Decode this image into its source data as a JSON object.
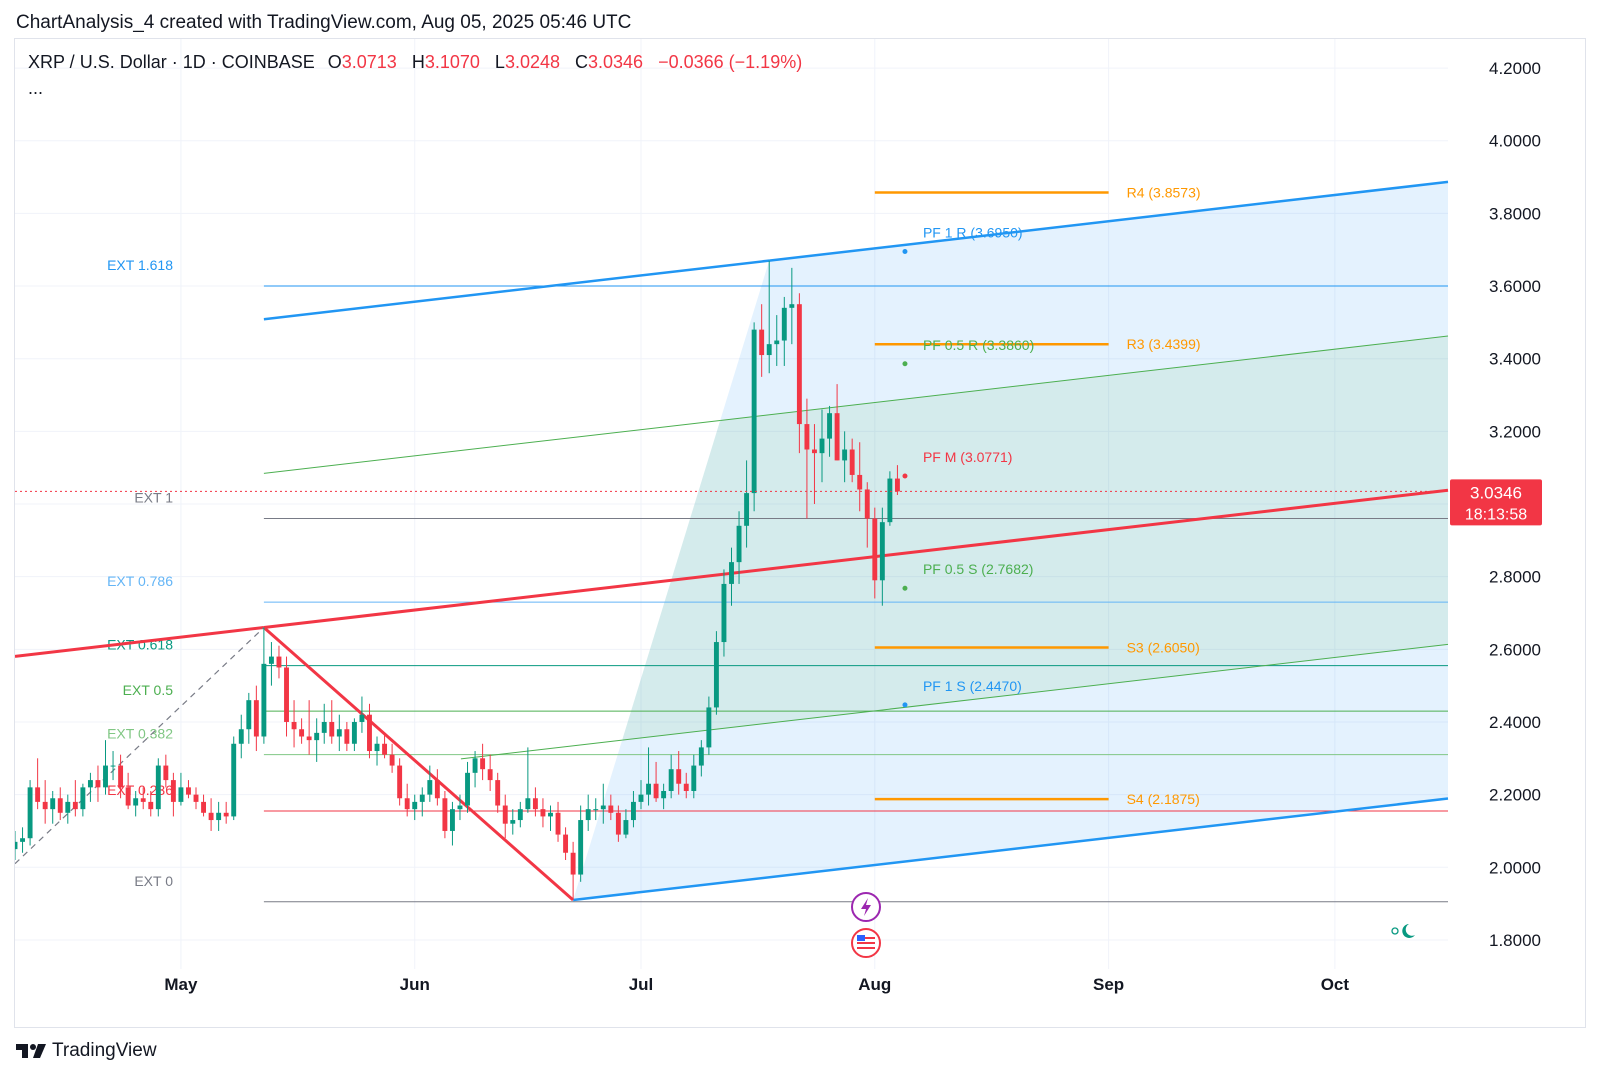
{
  "header": {
    "caption": "ChartAnalysis_4 created with TradingView.com, Aug 05, 2025 05:46 UTC"
  },
  "legend": {
    "symbol": "XRP / U.S. Dollar · 1D · COINBASE",
    "open_label": "O",
    "open": "3.0713",
    "high_label": "H",
    "high": "3.1070",
    "low_label": "L",
    "low": "3.0248",
    "close_label": "C",
    "close": "3.0346",
    "change": "−0.0366 (−1.19%)",
    "more": "..."
  },
  "price_badge": {
    "price": "3.0346",
    "countdown": "18:13:58",
    "color": "#f23645"
  },
  "footer": {
    "brand": "TradingView"
  },
  "colors": {
    "up": "#089981",
    "down": "#f23645",
    "pitchfork_outer": "#2196f3",
    "pitchfork_inner": "#4caf50",
    "median": "#f23645",
    "pivot": "#ff9800"
  },
  "chart_data": {
    "type": "candlestick",
    "ylim": [
      1.72,
      4.28
    ],
    "y_ticks": [
      "4.2000",
      "4.0000",
      "3.8000",
      "3.6000",
      "3.4000",
      "3.2000",
      "3.0000",
      "2.8000",
      "2.6000",
      "2.4000",
      "2.2000",
      "2.0000",
      "1.8000"
    ],
    "x_range": [
      "2025-04-09",
      "2025-10-16"
    ],
    "x_ticks": [
      {
        "date": "2025-05-01",
        "label": "May"
      },
      {
        "date": "2025-06-01",
        "label": "Jun"
      },
      {
        "date": "2025-07-01",
        "label": "Jul"
      },
      {
        "date": "2025-08-01",
        "label": "Aug"
      },
      {
        "date": "2025-09-01",
        "label": "Sep"
      },
      {
        "date": "2025-10-01",
        "label": "Oct"
      }
    ],
    "candles": [
      {
        "d": "2025-04-09",
        "o": 2.05,
        "h": 2.1,
        "l": 2.02,
        "c": 2.07
      },
      {
        "d": "2025-04-10",
        "o": 2.07,
        "h": 2.11,
        "l": 2.04,
        "c": 2.08
      },
      {
        "d": "2025-04-11",
        "o": 2.08,
        "h": 2.24,
        "l": 2.06,
        "c": 2.22
      },
      {
        "d": "2025-04-12",
        "o": 2.22,
        "h": 2.3,
        "l": 2.16,
        "c": 2.18
      },
      {
        "d": "2025-04-13",
        "o": 2.18,
        "h": 2.24,
        "l": 2.12,
        "c": 2.16
      },
      {
        "d": "2025-04-14",
        "o": 2.16,
        "h": 2.21,
        "l": 2.12,
        "c": 2.19
      },
      {
        "d": "2025-04-15",
        "o": 2.19,
        "h": 2.22,
        "l": 2.13,
        "c": 2.15
      },
      {
        "d": "2025-04-16",
        "o": 2.15,
        "h": 2.2,
        "l": 2.12,
        "c": 2.18
      },
      {
        "d": "2025-04-17",
        "o": 2.18,
        "h": 2.24,
        "l": 2.14,
        "c": 2.16
      },
      {
        "d": "2025-04-18",
        "o": 2.16,
        "h": 2.23,
        "l": 2.14,
        "c": 2.22
      },
      {
        "d": "2025-04-19",
        "o": 2.22,
        "h": 2.26,
        "l": 2.18,
        "c": 2.24
      },
      {
        "d": "2025-04-20",
        "o": 2.24,
        "h": 2.28,
        "l": 2.18,
        "c": 2.22
      },
      {
        "d": "2025-04-21",
        "o": 2.22,
        "h": 2.35,
        "l": 2.2,
        "c": 2.28
      },
      {
        "d": "2025-04-22",
        "o": 2.28,
        "h": 2.32,
        "l": 2.24,
        "c": 2.28
      },
      {
        "d": "2025-04-23",
        "o": 2.28,
        "h": 2.31,
        "l": 2.19,
        "c": 2.22
      },
      {
        "d": "2025-04-24",
        "o": 2.22,
        "h": 2.26,
        "l": 2.16,
        "c": 2.17
      },
      {
        "d": "2025-04-25",
        "o": 2.17,
        "h": 2.21,
        "l": 2.14,
        "c": 2.19
      },
      {
        "d": "2025-04-26",
        "o": 2.19,
        "h": 2.22,
        "l": 2.16,
        "c": 2.18
      },
      {
        "d": "2025-04-27",
        "o": 2.18,
        "h": 2.21,
        "l": 2.14,
        "c": 2.16
      },
      {
        "d": "2025-04-28",
        "o": 2.16,
        "h": 2.3,
        "l": 2.14,
        "c": 2.28
      },
      {
        "d": "2025-04-29",
        "o": 2.28,
        "h": 2.31,
        "l": 2.22,
        "c": 2.24
      },
      {
        "d": "2025-04-30",
        "o": 2.24,
        "h": 2.26,
        "l": 2.14,
        "c": 2.18
      },
      {
        "d": "2025-05-01",
        "o": 2.18,
        "h": 2.26,
        "l": 2.17,
        "c": 2.22
      },
      {
        "d": "2025-05-02",
        "o": 2.22,
        "h": 2.24,
        "l": 2.19,
        "c": 2.2
      },
      {
        "d": "2025-05-03",
        "o": 2.2,
        "h": 2.22,
        "l": 2.16,
        "c": 2.18
      },
      {
        "d": "2025-05-04",
        "o": 2.18,
        "h": 2.2,
        "l": 2.14,
        "c": 2.15
      },
      {
        "d": "2025-05-05",
        "o": 2.15,
        "h": 2.19,
        "l": 2.1,
        "c": 2.13
      },
      {
        "d": "2025-05-06",
        "o": 2.13,
        "h": 2.18,
        "l": 2.1,
        "c": 2.15
      },
      {
        "d": "2025-05-07",
        "o": 2.15,
        "h": 2.18,
        "l": 2.12,
        "c": 2.14
      },
      {
        "d": "2025-05-08",
        "o": 2.14,
        "h": 2.36,
        "l": 2.13,
        "c": 2.34
      },
      {
        "d": "2025-05-09",
        "o": 2.34,
        "h": 2.42,
        "l": 2.3,
        "c": 2.38
      },
      {
        "d": "2025-05-10",
        "o": 2.38,
        "h": 2.48,
        "l": 2.34,
        "c": 2.46
      },
      {
        "d": "2025-05-11",
        "o": 2.46,
        "h": 2.5,
        "l": 2.32,
        "c": 2.36
      },
      {
        "d": "2025-05-12",
        "o": 2.36,
        "h": 2.66,
        "l": 2.34,
        "c": 2.56
      },
      {
        "d": "2025-05-13",
        "o": 2.56,
        "h": 2.62,
        "l": 2.5,
        "c": 2.58
      },
      {
        "d": "2025-05-14",
        "o": 2.58,
        "h": 2.61,
        "l": 2.52,
        "c": 2.55
      },
      {
        "d": "2025-05-15",
        "o": 2.55,
        "h": 2.58,
        "l": 2.36,
        "c": 2.4
      },
      {
        "d": "2025-05-16",
        "o": 2.4,
        "h": 2.46,
        "l": 2.33,
        "c": 2.38
      },
      {
        "d": "2025-05-17",
        "o": 2.38,
        "h": 2.41,
        "l": 2.34,
        "c": 2.36
      },
      {
        "d": "2025-05-18",
        "o": 2.36,
        "h": 2.46,
        "l": 2.31,
        "c": 2.35
      },
      {
        "d": "2025-05-19",
        "o": 2.35,
        "h": 2.41,
        "l": 2.29,
        "c": 2.37
      },
      {
        "d": "2025-05-20",
        "o": 2.37,
        "h": 2.45,
        "l": 2.34,
        "c": 2.4
      },
      {
        "d": "2025-05-21",
        "o": 2.4,
        "h": 2.46,
        "l": 2.34,
        "c": 2.36
      },
      {
        "d": "2025-05-22",
        "o": 2.36,
        "h": 2.42,
        "l": 2.32,
        "c": 2.38
      },
      {
        "d": "2025-05-23",
        "o": 2.38,
        "h": 2.4,
        "l": 2.32,
        "c": 2.34
      },
      {
        "d": "2025-05-24",
        "o": 2.34,
        "h": 2.41,
        "l": 2.32,
        "c": 2.4
      },
      {
        "d": "2025-05-25",
        "o": 2.4,
        "h": 2.47,
        "l": 2.37,
        "c": 2.42
      },
      {
        "d": "2025-05-26",
        "o": 2.42,
        "h": 2.45,
        "l": 2.3,
        "c": 2.32
      },
      {
        "d": "2025-05-27",
        "o": 2.32,
        "h": 2.36,
        "l": 2.28,
        "c": 2.34
      },
      {
        "d": "2025-05-28",
        "o": 2.34,
        "h": 2.37,
        "l": 2.3,
        "c": 2.31
      },
      {
        "d": "2025-05-29",
        "o": 2.31,
        "h": 2.34,
        "l": 2.26,
        "c": 2.28
      },
      {
        "d": "2025-05-30",
        "o": 2.28,
        "h": 2.3,
        "l": 2.17,
        "c": 2.19
      },
      {
        "d": "2025-05-31",
        "o": 2.19,
        "h": 2.23,
        "l": 2.14,
        "c": 2.16
      },
      {
        "d": "2025-06-01",
        "o": 2.16,
        "h": 2.2,
        "l": 2.13,
        "c": 2.18
      },
      {
        "d": "2025-06-02",
        "o": 2.18,
        "h": 2.22,
        "l": 2.14,
        "c": 2.2
      },
      {
        "d": "2025-06-03",
        "o": 2.2,
        "h": 2.28,
        "l": 2.18,
        "c": 2.24
      },
      {
        "d": "2025-06-04",
        "o": 2.24,
        "h": 2.27,
        "l": 2.17,
        "c": 2.19
      },
      {
        "d": "2025-06-05",
        "o": 2.19,
        "h": 2.21,
        "l": 2.08,
        "c": 2.1
      },
      {
        "d": "2025-06-06",
        "o": 2.1,
        "h": 2.18,
        "l": 2.06,
        "c": 2.16
      },
      {
        "d": "2025-06-07",
        "o": 2.16,
        "h": 2.2,
        "l": 2.13,
        "c": 2.17
      },
      {
        "d": "2025-06-08",
        "o": 2.17,
        "h": 2.29,
        "l": 2.15,
        "c": 2.26
      },
      {
        "d": "2025-06-09",
        "o": 2.26,
        "h": 2.32,
        "l": 2.22,
        "c": 2.3
      },
      {
        "d": "2025-06-10",
        "o": 2.3,
        "h": 2.34,
        "l": 2.24,
        "c": 2.27
      },
      {
        "d": "2025-06-11",
        "o": 2.27,
        "h": 2.31,
        "l": 2.21,
        "c": 2.24
      },
      {
        "d": "2025-06-12",
        "o": 2.24,
        "h": 2.26,
        "l": 2.15,
        "c": 2.17
      },
      {
        "d": "2025-06-13",
        "o": 2.17,
        "h": 2.2,
        "l": 2.08,
        "c": 2.12
      },
      {
        "d": "2025-06-14",
        "o": 2.12,
        "h": 2.16,
        "l": 2.09,
        "c": 2.13
      },
      {
        "d": "2025-06-15",
        "o": 2.13,
        "h": 2.18,
        "l": 2.11,
        "c": 2.16
      },
      {
        "d": "2025-06-16",
        "o": 2.16,
        "h": 2.33,
        "l": 2.15,
        "c": 2.19
      },
      {
        "d": "2025-06-17",
        "o": 2.19,
        "h": 2.22,
        "l": 2.14,
        "c": 2.16
      },
      {
        "d": "2025-06-18",
        "o": 2.16,
        "h": 2.19,
        "l": 2.11,
        "c": 2.14
      },
      {
        "d": "2025-06-19",
        "o": 2.14,
        "h": 2.17,
        "l": 2.1,
        "c": 2.15
      },
      {
        "d": "2025-06-20",
        "o": 2.15,
        "h": 2.18,
        "l": 2.07,
        "c": 2.09
      },
      {
        "d": "2025-06-21",
        "o": 2.09,
        "h": 2.11,
        "l": 2.02,
        "c": 2.04
      },
      {
        "d": "2025-06-22",
        "o": 2.04,
        "h": 2.07,
        "l": 1.91,
        "c": 1.98
      },
      {
        "d": "2025-06-23",
        "o": 1.98,
        "h": 2.17,
        "l": 1.96,
        "c": 2.13
      },
      {
        "d": "2025-06-24",
        "o": 2.13,
        "h": 2.2,
        "l": 2.1,
        "c": 2.16
      },
      {
        "d": "2025-06-25",
        "o": 2.16,
        "h": 2.19,
        "l": 2.13,
        "c": 2.16
      },
      {
        "d": "2025-06-26",
        "o": 2.16,
        "h": 2.23,
        "l": 2.12,
        "c": 2.17
      },
      {
        "d": "2025-06-27",
        "o": 2.17,
        "h": 2.2,
        "l": 2.13,
        "c": 2.15
      },
      {
        "d": "2025-06-28",
        "o": 2.15,
        "h": 2.17,
        "l": 2.07,
        "c": 2.09
      },
      {
        "d": "2025-06-29",
        "o": 2.09,
        "h": 2.16,
        "l": 2.08,
        "c": 2.13
      },
      {
        "d": "2025-06-30",
        "o": 2.13,
        "h": 2.21,
        "l": 2.11,
        "c": 2.18
      },
      {
        "d": "2025-07-01",
        "o": 2.18,
        "h": 2.24,
        "l": 2.16,
        "c": 2.2
      },
      {
        "d": "2025-07-02",
        "o": 2.2,
        "h": 2.33,
        "l": 2.17,
        "c": 2.23
      },
      {
        "d": "2025-07-03",
        "o": 2.23,
        "h": 2.29,
        "l": 2.18,
        "c": 2.19
      },
      {
        "d": "2025-07-04",
        "o": 2.19,
        "h": 2.23,
        "l": 2.16,
        "c": 2.21
      },
      {
        "d": "2025-07-05",
        "o": 2.21,
        "h": 2.31,
        "l": 2.19,
        "c": 2.27
      },
      {
        "d": "2025-07-06",
        "o": 2.27,
        "h": 2.32,
        "l": 2.2,
        "c": 2.23
      },
      {
        "d": "2025-07-07",
        "o": 2.23,
        "h": 2.26,
        "l": 2.19,
        "c": 2.21
      },
      {
        "d": "2025-07-08",
        "o": 2.21,
        "h": 2.31,
        "l": 2.19,
        "c": 2.28
      },
      {
        "d": "2025-07-09",
        "o": 2.28,
        "h": 2.35,
        "l": 2.25,
        "c": 2.33
      },
      {
        "d": "2025-07-10",
        "o": 2.33,
        "h": 2.47,
        "l": 2.31,
        "c": 2.44
      },
      {
        "d": "2025-07-11",
        "o": 2.44,
        "h": 2.65,
        "l": 2.42,
        "c": 2.62
      },
      {
        "d": "2025-07-12",
        "o": 2.62,
        "h": 2.82,
        "l": 2.58,
        "c": 2.78
      },
      {
        "d": "2025-07-13",
        "o": 2.78,
        "h": 2.88,
        "l": 2.72,
        "c": 2.84
      },
      {
        "d": "2025-07-14",
        "o": 2.84,
        "h": 2.98,
        "l": 2.78,
        "c": 2.94
      },
      {
        "d": "2025-07-15",
        "o": 2.94,
        "h": 3.12,
        "l": 2.88,
        "c": 3.03
      },
      {
        "d": "2025-07-16",
        "o": 3.03,
        "h": 3.5,
        "l": 2.98,
        "c": 3.48
      },
      {
        "d": "2025-07-17",
        "o": 3.48,
        "h": 3.55,
        "l": 3.35,
        "c": 3.41
      },
      {
        "d": "2025-07-18",
        "o": 3.41,
        "h": 3.67,
        "l": 3.36,
        "c": 3.44
      },
      {
        "d": "2025-07-19",
        "o": 3.44,
        "h": 3.52,
        "l": 3.38,
        "c": 3.45
      },
      {
        "d": "2025-07-20",
        "o": 3.45,
        "h": 3.57,
        "l": 3.38,
        "c": 3.54
      },
      {
        "d": "2025-07-21",
        "o": 3.54,
        "h": 3.65,
        "l": 3.44,
        "c": 3.55
      },
      {
        "d": "2025-07-22",
        "o": 3.55,
        "h": 3.58,
        "l": 3.14,
        "c": 3.22
      },
      {
        "d": "2025-07-23",
        "o": 3.22,
        "h": 3.29,
        "l": 2.96,
        "c": 3.15
      },
      {
        "d": "2025-07-24",
        "o": 3.15,
        "h": 3.22,
        "l": 3.0,
        "c": 3.14
      },
      {
        "d": "2025-07-25",
        "o": 3.14,
        "h": 3.26,
        "l": 3.06,
        "c": 3.18
      },
      {
        "d": "2025-07-26",
        "o": 3.18,
        "h": 3.27,
        "l": 3.13,
        "c": 3.25
      },
      {
        "d": "2025-07-27",
        "o": 3.25,
        "h": 3.33,
        "l": 3.12,
        "c": 3.12
      },
      {
        "d": "2025-07-28",
        "o": 3.12,
        "h": 3.2,
        "l": 3.06,
        "c": 3.15
      },
      {
        "d": "2025-07-29",
        "o": 3.15,
        "h": 3.18,
        "l": 3.06,
        "c": 3.08
      },
      {
        "d": "2025-07-30",
        "o": 3.08,
        "h": 3.17,
        "l": 2.98,
        "c": 3.04
      },
      {
        "d": "2025-07-31",
        "o": 3.04,
        "h": 3.06,
        "l": 2.88,
        "c": 2.96
      },
      {
        "d": "2025-08-01",
        "o": 2.96,
        "h": 2.99,
        "l": 2.74,
        "c": 2.79
      },
      {
        "d": "2025-08-02",
        "o": 2.79,
        "h": 2.99,
        "l": 2.72,
        "c": 2.95
      },
      {
        "d": "2025-08-03",
        "o": 2.95,
        "h": 3.09,
        "l": 2.94,
        "c": 3.07
      },
      {
        "d": "2025-08-04",
        "o": 3.07,
        "h": 3.107,
        "l": 3.0248,
        "c": 3.0346
      }
    ],
    "pitchfork": {
      "pivot_a": {
        "d": "2025-05-12",
        "p": 2.66
      },
      "pivot_b": {
        "d": "2025-06-22",
        "p": 1.91
      },
      "pivot_c": {
        "d": "2025-07-18",
        "p": 3.67
      },
      "levels": [
        {
          "key": "outer_r",
          "label": "PF 1 R (3.6950)",
          "anchor": {
            "d": "2025-08-05",
            "p": 3.695
          }
        },
        {
          "key": "half_r",
          "label": "PF 0.5 R (3.3860)",
          "anchor": {
            "d": "2025-08-05",
            "p": 3.386
          }
        },
        {
          "key": "median",
          "label": "PF M (3.0771)",
          "anchor": {
            "d": "2025-08-05",
            "p": 3.0771
          }
        },
        {
          "key": "half_s",
          "label": "PF 0.5 S (2.7682)",
          "anchor": {
            "d": "2025-08-05",
            "p": 2.7682
          }
        },
        {
          "key": "outer_s",
          "label": "PF 1 S (2.4470)",
          "anchor": {
            "d": "2025-08-05",
            "p": 2.447
          }
        }
      ]
    },
    "fib_extensions": [
      {
        "label": "EXT 1.618",
        "price": 3.6,
        "color": "#2196f3"
      },
      {
        "label": "EXT 1",
        "price": 2.96,
        "color": "#787b86"
      },
      {
        "label": "EXT 0.786",
        "price": 2.73,
        "color": "#64b5f6"
      },
      {
        "label": "EXT 0.618",
        "price": 2.555,
        "color": "#089981"
      },
      {
        "label": "EXT 0.5",
        "price": 2.43,
        "color": "#4caf50"
      },
      {
        "label": "EXT 0.382",
        "price": 2.31,
        "color": "#81c784"
      },
      {
        "label": "EXT 0.236",
        "price": 2.155,
        "color": "#f23645"
      },
      {
        "label": "EXT 0",
        "price": 1.905,
        "color": "#787b86"
      }
    ],
    "pivot_levels": [
      {
        "label": "R4 (3.8573)",
        "price": 3.8573
      },
      {
        "label": "R3 (3.4399)",
        "price": 3.4399
      },
      {
        "label": "S3 (2.6050)",
        "price": 2.605
      },
      {
        "label": "S4 (2.1875)",
        "price": 2.1875
      }
    ],
    "pivot_range": {
      "from": "2025-08-01",
      "to": "2025-09-01"
    },
    "last_price": 3.0346
  }
}
